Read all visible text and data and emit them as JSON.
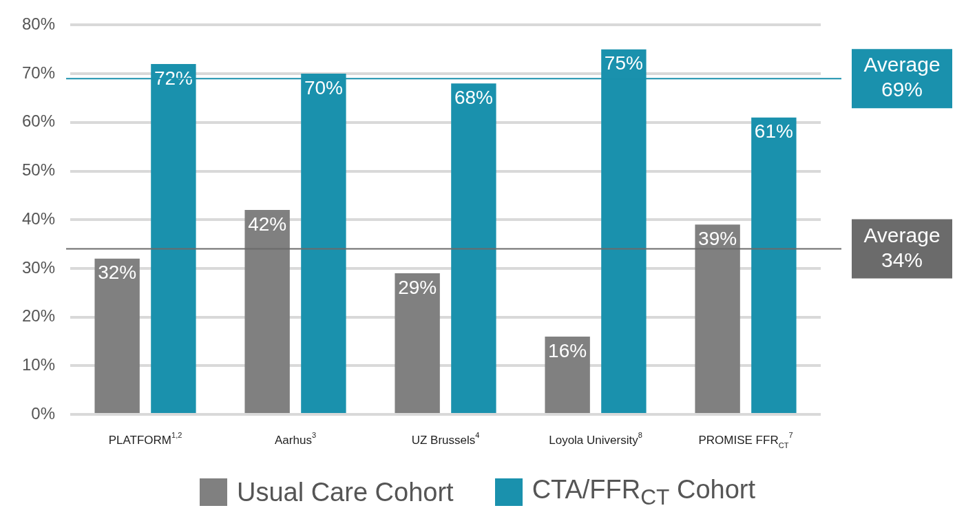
{
  "chart_data": {
    "type": "bar",
    "categories": [
      "PLATFORM$^{1,2}$",
      "Aarhus$^{3}$",
      "UZ Brussels$^{4}$",
      "Loyola University$^{8}$",
      "PROMISE FFR$_{CT}$$^{7}$"
    ],
    "series": [
      {
        "name": "Usual Care Cohort",
        "color": "#808080",
        "values": [
          32,
          42,
          29,
          16,
          39
        ],
        "value_labels": [
          "32%",
          "42%",
          "29%",
          "16%",
          "39%"
        ]
      },
      {
        "name": "CTA/FFR$_{CT}$ Cohort",
        "color": "#1a91ad",
        "values": [
          72,
          70,
          68,
          75,
          61
        ],
        "value_labels": [
          "72%",
          "70%",
          "68%",
          "75%",
          "61%"
        ]
      }
    ],
    "ylim": [
      0,
      80
    ],
    "yticks": [
      {
        "value": 0,
        "label": "0%"
      },
      {
        "value": 10,
        "label": "10%"
      },
      {
        "value": 20,
        "label": "20%"
      },
      {
        "value": 30,
        "label": "30%"
      },
      {
        "value": 40,
        "label": "40%"
      },
      {
        "value": 50,
        "label": "50%"
      },
      {
        "value": 60,
        "label": "60%"
      },
      {
        "value": 70,
        "label": "70%"
      },
      {
        "value": 80,
        "label": "80%"
      }
    ],
    "ref_lines": [
      {
        "axis": "y",
        "value": 69,
        "label": "Average\n69%",
        "color": "#1a91ad"
      },
      {
        "axis": "y",
        "value": 34,
        "label": "Average\n34%",
        "color": "#6b6b6b"
      }
    ],
    "grid": "y",
    "legend": "bottom"
  }
}
